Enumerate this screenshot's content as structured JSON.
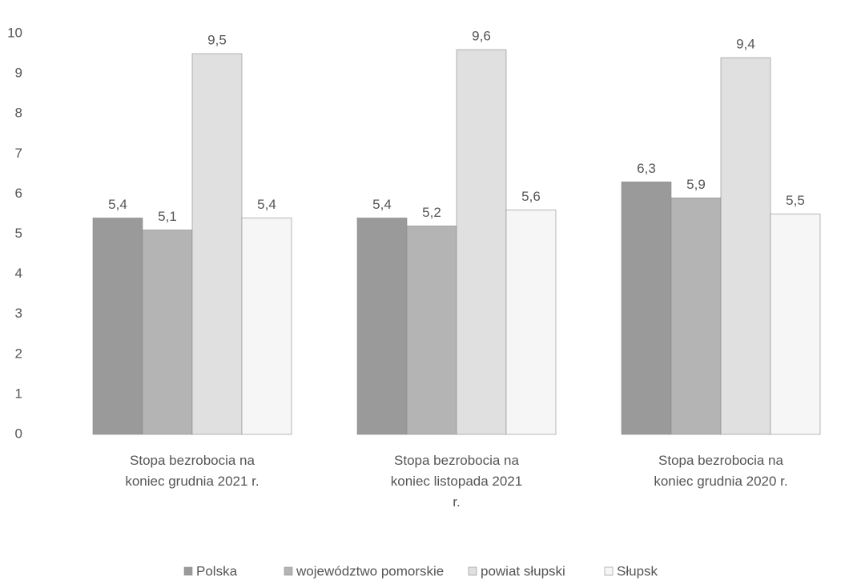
{
  "chart_data": {
    "type": "bar",
    "categories": [
      "Stopa bezrobocia na koniec grudnia 2021 r.",
      "Stopa bezrobocia na koniec listopada 2021 r.",
      "Stopa bezrobocia na koniec grudnia 2020 r."
    ],
    "series": [
      {
        "name": "Polska",
        "color": "#9a9a9a",
        "values": [
          5.4,
          5.4,
          6.3
        ],
        "value_labels": [
          "5,4",
          "5,4",
          "6,3"
        ]
      },
      {
        "name": "województwo pomorskie",
        "color": "#b4b4b4",
        "values": [
          5.1,
          5.2,
          5.9
        ],
        "value_labels": [
          "5,1",
          "5,2",
          "5,9"
        ]
      },
      {
        "name": "powiat słupski",
        "color": "#e0e0e0",
        "values": [
          9.5,
          9.6,
          9.4
        ],
        "value_labels": [
          "9,5",
          "9,6",
          "9,4"
        ]
      },
      {
        "name": "Słupsk",
        "color": "#f6f6f6",
        "values": [
          5.4,
          5.6,
          5.5
        ],
        "value_labels": [
          "5,4",
          "5,6",
          "5,5"
        ]
      }
    ],
    "ylim": [
      0,
      10
    ],
    "yticks": [
      0,
      1,
      2,
      3,
      4,
      5,
      6,
      7,
      8,
      9,
      10
    ],
    "grid": false,
    "legend": "bottom"
  }
}
